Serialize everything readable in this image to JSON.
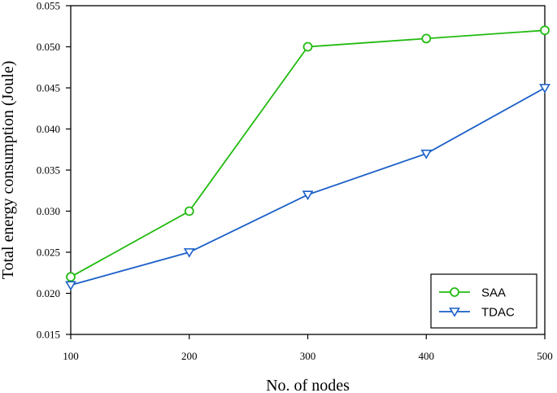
{
  "chart_data": {
    "type": "line",
    "title": "",
    "xlabel": "No. of nodes",
    "ylabel": "Total energy consumption (Joule)",
    "x": [
      100,
      200,
      300,
      400,
      500
    ],
    "xlim": [
      100,
      500
    ],
    "ylim": [
      0.015,
      0.055
    ],
    "xticks": [
      "100",
      "200",
      "300",
      "400",
      "500"
    ],
    "yticks": [
      "0.015",
      "0.020",
      "0.025",
      "0.030",
      "0.035",
      "0.040",
      "0.045",
      "0.050",
      "0.055"
    ],
    "grid": false,
    "legend_position": "bottom-right",
    "series": [
      {
        "name": "SAA",
        "values": [
          0.022,
          0.03,
          0.05,
          0.051,
          0.052
        ],
        "color": "#22bb11",
        "marker": "circle"
      },
      {
        "name": "TDAC",
        "values": [
          0.021,
          0.025,
          0.032,
          0.037,
          0.045
        ],
        "color": "#1a5fc8",
        "marker": "triangle-down"
      }
    ]
  }
}
